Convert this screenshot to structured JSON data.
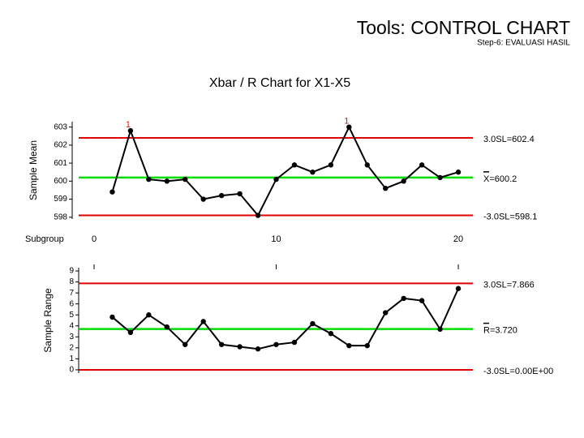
{
  "header": {
    "title": "Tools: CONTROL CHART",
    "subtitle": "Step-6: EVALUASI HASIL"
  },
  "chart_data": [
    {
      "type": "line",
      "title": "Xbar / R Chart for X1-X5",
      "ylabel": "Sample Mean",
      "xlabel": "Subgroup",
      "x": [
        1,
        2,
        3,
        4,
        5,
        6,
        7,
        8,
        9,
        10,
        11,
        12,
        13,
        14,
        15,
        16,
        17,
        18,
        19,
        20
      ],
      "series": [
        {
          "color": "#000000",
          "values": [
            599.4,
            602.8,
            600.1,
            600.0,
            600.1,
            599.0,
            599.2,
            599.3,
            598.1,
            600.1,
            600.9,
            600.5,
            600.9,
            603.0,
            600.9,
            599.6,
            600.0,
            600.9,
            600.2,
            600.5
          ]
        }
      ],
      "control_limits": [
        {
          "value": 602.4,
          "label": "3.0SL=602.4",
          "color": "#e00000"
        },
        {
          "value": 600.2,
          "label": "X=600.2",
          "color": "#00dd00",
          "overbar": true
        },
        {
          "value": 598.1,
          "label": "-3.0SL=598.1",
          "color": "#e00000"
        }
      ],
      "flags": {
        "x": [
          2,
          14
        ],
        "label": "1",
        "color": "#cc2222"
      },
      "xlim": [
        0,
        21
      ],
      "xticks": [
        0,
        10,
        20
      ],
      "show_xtick_labels": true,
      "ylim": [
        597.9,
        603.3
      ],
      "yticks": [
        598,
        599,
        600,
        601,
        602,
        603
      ]
    },
    {
      "type": "line",
      "ylabel": "Sample Range",
      "x": [
        1,
        2,
        3,
        4,
        5,
        6,
        7,
        8,
        9,
        10,
        11,
        12,
        13,
        14,
        15,
        16,
        17,
        18,
        19,
        20
      ],
      "series": [
        {
          "color": "#000000",
          "values": [
            4.8,
            3.4,
            5.0,
            3.9,
            2.3,
            4.4,
            2.3,
            2.1,
            1.9,
            2.3,
            2.5,
            4.2,
            3.3,
            2.2,
            2.2,
            5.2,
            6.5,
            6.3,
            3.7,
            7.4
          ]
        }
      ],
      "control_limits": [
        {
          "value": 7.866,
          "label": "3.0SL=7.866",
          "color": "#e00000"
        },
        {
          "value": 3.72,
          "label": "R=3.720",
          "color": "#00dd00",
          "overbar": true
        },
        {
          "value": 0,
          "label": "-3.0SL=0.00E+00",
          "color": "#e00000"
        }
      ],
      "xlim": [
        0,
        21
      ],
      "xticks": [
        0,
        10,
        20
      ],
      "show_xtick_labels": false,
      "ylim": [
        -0.3,
        9.3
      ],
      "yticks": [
        0,
        1,
        2,
        3,
        4,
        5,
        6,
        7,
        8,
        9
      ]
    }
  ]
}
